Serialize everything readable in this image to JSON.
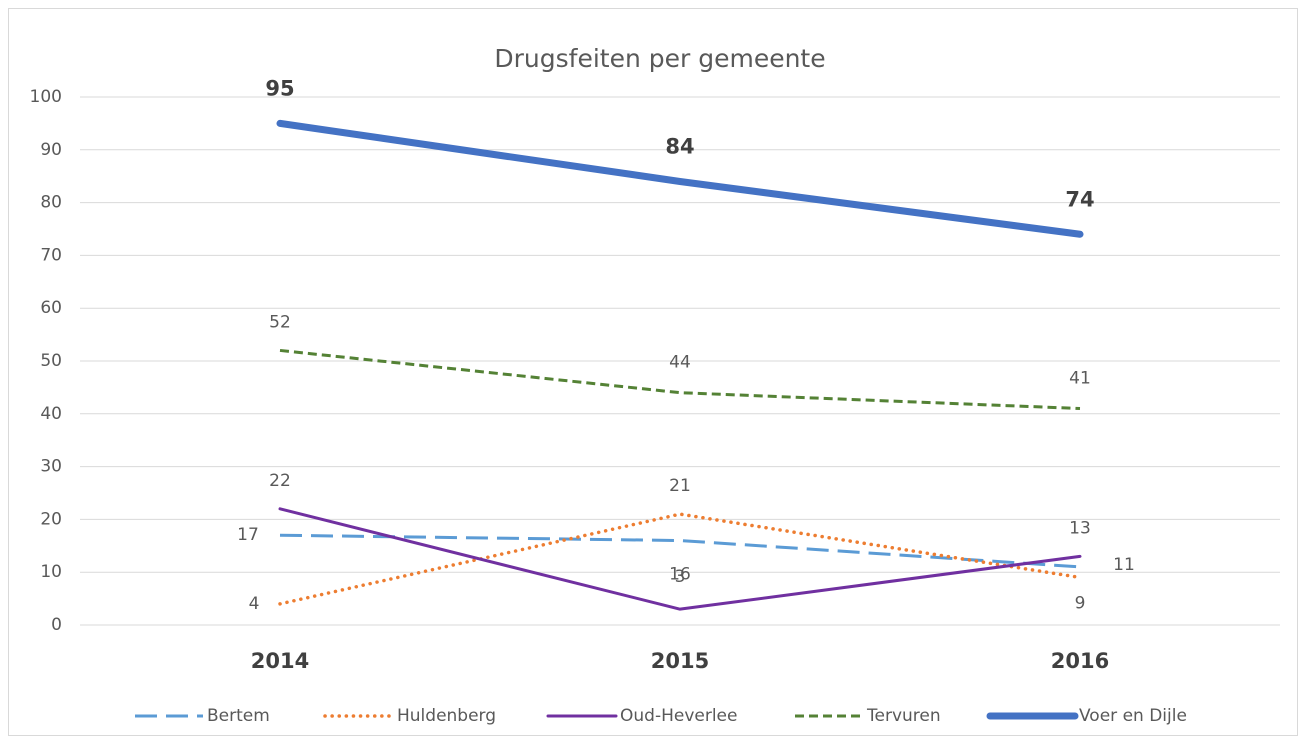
{
  "chart_data": {
    "type": "line",
    "title": "Drugsfeiten per gemeente",
    "categories": [
      "2014",
      "2015",
      "2016"
    ],
    "series": [
      {
        "name": "Bertem",
        "color": "#5b9bd5",
        "style": "long-dash",
        "values": [
          17,
          16,
          11
        ]
      },
      {
        "name": "Huldenberg",
        "color": "#ed7d31",
        "style": "round-dot",
        "values": [
          4,
          21,
          9
        ]
      },
      {
        "name": "Oud-Heverlee",
        "color": "#7030a0",
        "style": "solid",
        "values": [
          22,
          3,
          13
        ]
      },
      {
        "name": "Tervuren",
        "color": "#548235",
        "style": "dash",
        "values": [
          52,
          44,
          41
        ]
      },
      {
        "name": "Voer en Dijle",
        "color": "#4472c4",
        "style": "solid",
        "emphasis": true,
        "values": [
          95,
          84,
          74
        ]
      }
    ],
    "ylim": [
      0,
      100
    ],
    "yticks": [
      0,
      10,
      20,
      30,
      40,
      50,
      60,
      70,
      80,
      90,
      100
    ],
    "grid": true,
    "legend": "bottom",
    "data_labels": true
  }
}
